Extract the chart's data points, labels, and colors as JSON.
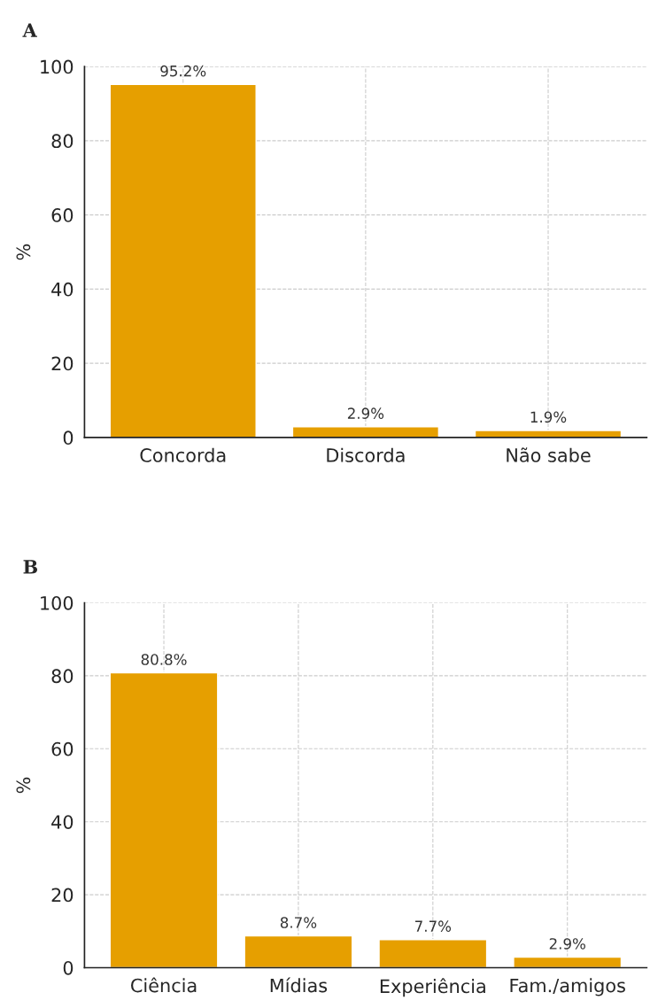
{
  "chart_data": [
    {
      "type": "bar",
      "title": "A",
      "ylabel": "%",
      "categories": [
        "Concorda",
        "Discorda",
        "Não sabe"
      ],
      "values": [
        95.2,
        2.9,
        1.9
      ],
      "value_labels": [
        "95.2%",
        "2.9%",
        "1.9%"
      ],
      "color": "#e69f00",
      "ylim": [
        0,
        100
      ],
      "yticks": [
        0,
        20,
        40,
        60,
        80,
        100
      ],
      "grid": true,
      "line_style": "dashed"
    },
    {
      "type": "bar",
      "title": "B",
      "ylabel": "%",
      "categories": [
        "Ciência",
        "Mídias",
        "Experiência",
        "Fam./amigos"
      ],
      "values": [
        80.8,
        8.7,
        7.7,
        2.9
      ],
      "value_labels": [
        "80.8%",
        "8.7%",
        "7.7%",
        "2.9%"
      ],
      "color": "#e69f00",
      "ylim": [
        0,
        100
      ],
      "yticks": [
        0,
        20,
        40,
        60,
        80,
        100
      ],
      "grid": true,
      "line_style": "dashed"
    }
  ]
}
